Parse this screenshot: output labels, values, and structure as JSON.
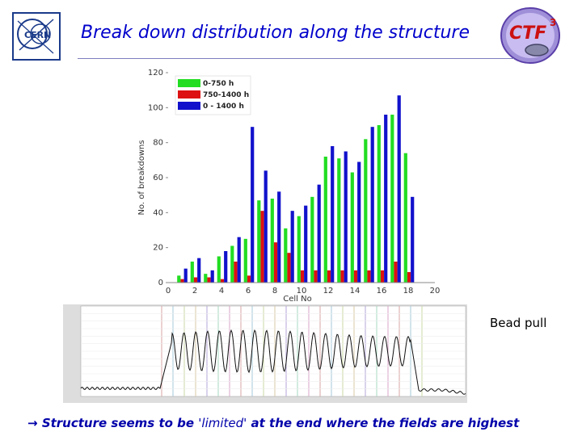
{
  "slide": {
    "title": "Break down distribution along the structure",
    "bead_pull_label": "Bead pull",
    "conclusion_arrow": "→",
    "conclusion_before": "Structure seems to be ",
    "conclusion_quote": "'limited'",
    "conclusion_after": " at the end where the fields are highest"
  },
  "logos": {
    "cern": {
      "text": "CERN",
      "icon": "cern-logo-icon",
      "color": "#1a3a8a"
    },
    "ctf3": {
      "text": "CTF",
      "superscript": "3",
      "icon": "ctf3-logo-icon",
      "color": "#cc1111"
    }
  },
  "chart_data": [
    {
      "type": "bar",
      "title": "",
      "xlabel": "Cell No",
      "ylabel": "No. of breakdowns",
      "xlim": [
        0,
        20
      ],
      "ylim": [
        0,
        120
      ],
      "x_ticks": [
        "0",
        "2",
        "4",
        "6",
        "8",
        "10",
        "12",
        "14",
        "16",
        "18",
        "20"
      ],
      "y_ticks": [
        "0",
        "20",
        "40",
        "60",
        "80",
        "100",
        "120"
      ],
      "legend_position": "top-left",
      "categories": [
        1,
        2,
        3,
        4,
        5,
        6,
        7,
        8,
        9,
        10,
        11,
        12,
        13,
        14,
        15,
        16,
        17,
        18
      ],
      "series": [
        {
          "name": "0-750 h",
          "color": "#22dd22",
          "values": [
            4,
            12,
            5,
            15,
            21,
            25,
            47,
            48,
            31,
            38,
            49,
            72,
            71,
            63,
            82,
            90,
            96,
            74
          ]
        },
        {
          "name": "750-1400 h",
          "color": "#dd1111",
          "values": [
            2,
            3,
            3,
            2,
            12,
            4,
            41,
            23,
            17,
            7,
            7,
            7,
            7,
            7,
            7,
            7,
            12,
            6
          ]
        },
        {
          "name": "0 - 1400 h",
          "color": "#1111cc",
          "values": [
            8,
            14,
            7,
            18,
            26,
            89,
            64,
            52,
            41,
            44,
            56,
            78,
            75,
            69,
            89,
            96,
            107,
            49
          ]
        }
      ]
    },
    {
      "type": "line",
      "title": "",
      "xlabel": "",
      "ylabel": "",
      "grid": true,
      "series": [
        {
          "name": "",
          "color": "#111111",
          "shape": "bead-pull-field-profile"
        }
      ]
    }
  ]
}
